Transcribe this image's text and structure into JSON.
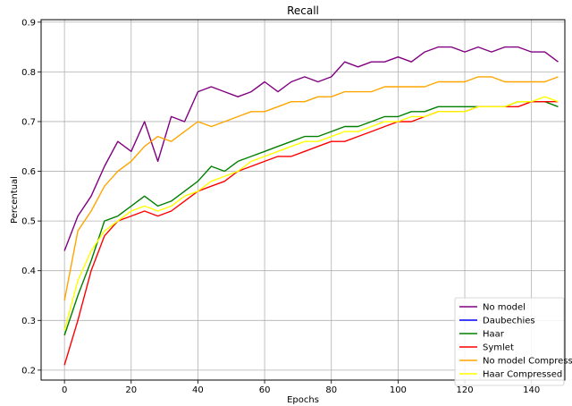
{
  "chart_data": {
    "type": "line",
    "title": "Recall",
    "xlabel": "Epochs",
    "ylabel": "Percentual",
    "xlim": [
      -7,
      150
    ],
    "ylim": [
      0.18,
      0.905
    ],
    "xticks": [
      0,
      20,
      40,
      60,
      80,
      100,
      120,
      140
    ],
    "yticks": [
      0.2,
      0.3,
      0.4,
      0.5,
      0.6,
      0.7,
      0.8,
      0.9
    ],
    "grid": true,
    "legend_position": "lower-right",
    "series": [
      {
        "name": "No model",
        "color": "#800080",
        "x": [
          0,
          4,
          8,
          12,
          16,
          20,
          24,
          28,
          32,
          36,
          40,
          44,
          48,
          52,
          56,
          60,
          64,
          68,
          72,
          76,
          80,
          84,
          88,
          92,
          96,
          100,
          104,
          108,
          112,
          116,
          120,
          124,
          128,
          132,
          136,
          140,
          144,
          148
        ],
        "y": [
          0.44,
          0.51,
          0.55,
          0.61,
          0.66,
          0.64,
          0.7,
          0.62,
          0.71,
          0.7,
          0.76,
          0.77,
          0.76,
          0.75,
          0.76,
          0.78,
          0.76,
          0.78,
          0.79,
          0.78,
          0.79,
          0.82,
          0.81,
          0.82,
          0.82,
          0.83,
          0.82,
          0.84,
          0.85,
          0.85,
          0.84,
          0.85,
          0.84,
          0.85,
          0.85,
          0.84,
          0.84,
          0.82
        ]
      },
      {
        "name": "Daubechies",
        "color": "#0000ff",
        "x": [],
        "y": []
      },
      {
        "name": "Haar",
        "color": "#008000",
        "x": [
          0,
          4,
          8,
          12,
          16,
          20,
          24,
          28,
          32,
          36,
          40,
          44,
          48,
          52,
          56,
          60,
          64,
          68,
          72,
          76,
          80,
          84,
          88,
          92,
          96,
          100,
          104,
          108,
          112,
          116,
          120,
          124,
          128,
          132,
          136,
          140,
          144,
          148
        ],
        "y": [
          0.27,
          0.35,
          0.42,
          0.5,
          0.51,
          0.53,
          0.55,
          0.53,
          0.54,
          0.56,
          0.58,
          0.61,
          0.6,
          0.62,
          0.63,
          0.64,
          0.65,
          0.66,
          0.67,
          0.67,
          0.68,
          0.69,
          0.69,
          0.7,
          0.71,
          0.71,
          0.72,
          0.72,
          0.73,
          0.73,
          0.73,
          0.73,
          0.73,
          0.73,
          0.74,
          0.74,
          0.74,
          0.73
        ]
      },
      {
        "name": "Symlet",
        "color": "#ff0000",
        "x": [
          0,
          4,
          8,
          12,
          16,
          20,
          24,
          28,
          32,
          36,
          40,
          44,
          48,
          52,
          56,
          60,
          64,
          68,
          72,
          76,
          80,
          84,
          88,
          92,
          96,
          100,
          104,
          108,
          112,
          116,
          120,
          124,
          128,
          132,
          136,
          140,
          144,
          148
        ],
        "y": [
          0.21,
          0.3,
          0.4,
          0.47,
          0.5,
          0.51,
          0.52,
          0.51,
          0.52,
          0.54,
          0.56,
          0.57,
          0.58,
          0.6,
          0.61,
          0.62,
          0.63,
          0.63,
          0.64,
          0.65,
          0.66,
          0.66,
          0.67,
          0.68,
          0.69,
          0.7,
          0.7,
          0.71,
          0.72,
          0.72,
          0.72,
          0.73,
          0.73,
          0.73,
          0.73,
          0.74,
          0.74,
          0.74
        ]
      },
      {
        "name": "No model Compressed",
        "color": "#ffa500",
        "x": [
          0,
          4,
          8,
          12,
          16,
          20,
          24,
          28,
          32,
          36,
          40,
          44,
          48,
          52,
          56,
          60,
          64,
          68,
          72,
          76,
          80,
          84,
          88,
          92,
          96,
          100,
          104,
          108,
          112,
          116,
          120,
          124,
          128,
          132,
          136,
          140,
          144,
          148
        ],
        "y": [
          0.34,
          0.48,
          0.52,
          0.57,
          0.6,
          0.62,
          0.65,
          0.67,
          0.66,
          0.68,
          0.7,
          0.69,
          0.7,
          0.71,
          0.72,
          0.72,
          0.73,
          0.74,
          0.74,
          0.75,
          0.75,
          0.76,
          0.76,
          0.76,
          0.77,
          0.77,
          0.77,
          0.77,
          0.78,
          0.78,
          0.78,
          0.79,
          0.79,
          0.78,
          0.78,
          0.78,
          0.78,
          0.79
        ]
      },
      {
        "name": "Haar Compressed",
        "color": "#ffff00",
        "x": [
          0,
          4,
          8,
          12,
          16,
          20,
          24,
          28,
          32,
          36,
          40,
          44,
          48,
          52,
          56,
          60,
          64,
          68,
          72,
          76,
          80,
          84,
          88,
          92,
          96,
          100,
          104,
          108,
          112,
          116,
          120,
          124,
          128,
          132,
          136,
          140,
          144,
          148
        ],
        "y": [
          0.28,
          0.38,
          0.44,
          0.48,
          0.5,
          0.52,
          0.53,
          0.52,
          0.53,
          0.55,
          0.56,
          0.58,
          0.59,
          0.6,
          0.62,
          0.63,
          0.64,
          0.65,
          0.66,
          0.66,
          0.67,
          0.68,
          0.68,
          0.69,
          0.7,
          0.7,
          0.71,
          0.71,
          0.72,
          0.72,
          0.72,
          0.73,
          0.73,
          0.73,
          0.74,
          0.74,
          0.75,
          0.74
        ]
      }
    ]
  }
}
